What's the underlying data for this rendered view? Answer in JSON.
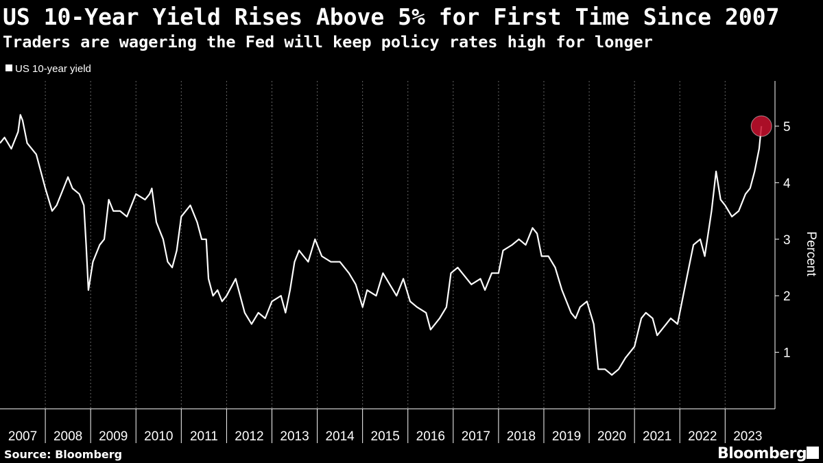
{
  "chart_data": {
    "type": "line",
    "title": "US 10-Year Yield Rises Above 5% for First Time Since 2007",
    "subtitle": "Traders are wagering the Fed will keep policy rates high for longer",
    "y_label": "Percent",
    "source": "Source: Bloomberg",
    "brand": "Bloomberg",
    "grid": true,
    "marker_color": "#c8102e",
    "x": [
      2007.0,
      2007.1,
      2007.25,
      2007.4,
      2007.45,
      2007.5,
      2007.6,
      2007.7,
      2007.8,
      2007.9,
      2008.0,
      2008.15,
      2008.25,
      2008.4,
      2008.5,
      2008.6,
      2008.75,
      2008.85,
      2008.9,
      2008.95,
      2009.05,
      2009.2,
      2009.3,
      2009.4,
      2009.5,
      2009.65,
      2009.8,
      2009.9,
      2010.0,
      2010.2,
      2010.3,
      2010.35,
      2010.45,
      2010.6,
      2010.7,
      2010.8,
      2010.9,
      2011.0,
      2011.1,
      2011.2,
      2011.35,
      2011.45,
      2011.55,
      2011.6,
      2011.7,
      2011.8,
      2011.9,
      2012.0,
      2012.2,
      2012.3,
      2012.4,
      2012.55,
      2012.7,
      2012.85,
      2013.0,
      2013.2,
      2013.3,
      2013.4,
      2013.5,
      2013.6,
      2013.7,
      2013.8,
      2013.95,
      2014.1,
      2014.3,
      2014.5,
      2014.7,
      2014.85,
      2015.0,
      2015.1,
      2015.3,
      2015.45,
      2015.6,
      2015.75,
      2015.9,
      2016.05,
      2016.2,
      2016.4,
      2016.5,
      2016.7,
      2016.85,
      2016.95,
      2017.1,
      2017.2,
      2017.4,
      2017.6,
      2017.7,
      2017.85,
      2018.0,
      2018.1,
      2018.3,
      2018.45,
      2018.6,
      2018.75,
      2018.85,
      2018.95,
      2019.1,
      2019.25,
      2019.4,
      2019.6,
      2019.7,
      2019.8,
      2019.95,
      2020.1,
      2020.2,
      2020.35,
      2020.5,
      2020.65,
      2020.8,
      2021.0,
      2021.15,
      2021.25,
      2021.4,
      2021.5,
      2021.7,
      2021.8,
      2021.95,
      2022.05,
      2022.2,
      2022.3,
      2022.45,
      2022.55,
      2022.7,
      2022.8,
      2022.9,
      2023.0,
      2023.15,
      2023.3,
      2023.45,
      2023.55,
      2023.65,
      2023.75,
      2023.8
    ],
    "series": [
      {
        "name": "US 10-year yield",
        "color": "#ffffff",
        "values": [
          4.7,
          4.8,
          4.6,
          4.9,
          5.2,
          5.1,
          4.7,
          4.6,
          4.5,
          4.2,
          3.9,
          3.5,
          3.6,
          3.9,
          4.1,
          3.9,
          3.8,
          3.6,
          2.9,
          2.1,
          2.6,
          2.9,
          3.0,
          3.7,
          3.5,
          3.5,
          3.4,
          3.6,
          3.8,
          3.7,
          3.8,
          3.9,
          3.3,
          3.0,
          2.6,
          2.5,
          2.8,
          3.4,
          3.5,
          3.6,
          3.3,
          3.0,
          3.0,
          2.3,
          2.0,
          2.1,
          1.9,
          2.0,
          2.3,
          2.0,
          1.7,
          1.5,
          1.7,
          1.6,
          1.9,
          2.0,
          1.7,
          2.1,
          2.6,
          2.8,
          2.7,
          2.6,
          3.0,
          2.7,
          2.6,
          2.6,
          2.4,
          2.2,
          1.8,
          2.1,
          2.0,
          2.4,
          2.2,
          2.0,
          2.3,
          1.9,
          1.8,
          1.7,
          1.4,
          1.6,
          1.8,
          2.4,
          2.5,
          2.4,
          2.2,
          2.3,
          2.1,
          2.4,
          2.4,
          2.8,
          2.9,
          3.0,
          2.9,
          3.2,
          3.1,
          2.7,
          2.7,
          2.5,
          2.1,
          1.7,
          1.6,
          1.8,
          1.9,
          1.5,
          0.7,
          0.7,
          0.6,
          0.7,
          0.9,
          1.1,
          1.6,
          1.7,
          1.6,
          1.3,
          1.5,
          1.6,
          1.5,
          1.9,
          2.5,
          2.9,
          3.0,
          2.7,
          3.5,
          4.2,
          3.7,
          3.6,
          3.4,
          3.5,
          3.8,
          3.9,
          4.2,
          4.6,
          5.0
        ]
      }
    ],
    "xlim": [
      2007,
      2024.1
    ],
    "xticks": [
      2007,
      2008,
      2009,
      2010,
      2011,
      2012,
      2013,
      2014,
      2015,
      2016,
      2017,
      2018,
      2019,
      2020,
      2021,
      2022,
      2023
    ],
    "ylim": [
      0,
      5.8
    ],
    "yticks": [
      1,
      2,
      3,
      4,
      5
    ]
  }
}
